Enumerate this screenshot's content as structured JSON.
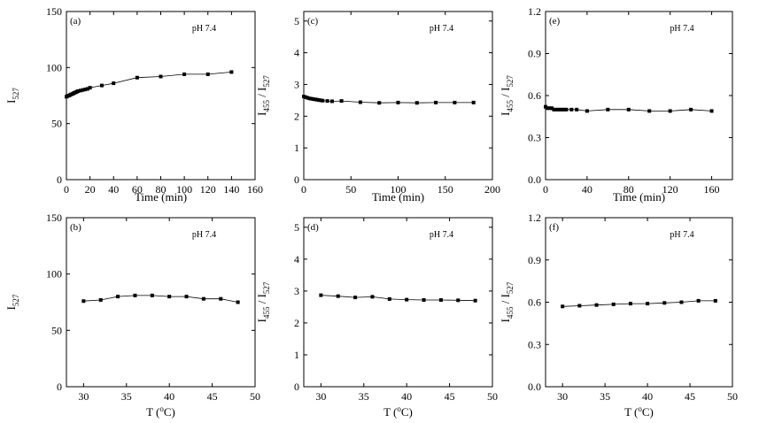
{
  "chart_data": [
    {
      "id": "a",
      "type": "line",
      "panel_label": "(a)",
      "annotation": "pH 7.4",
      "xlabel": "Time (min)",
      "ylabel_main": "I",
      "ylabel_sub": "527",
      "xlim": [
        0,
        160
      ],
      "ylim": [
        0,
        150
      ],
      "xticks": [
        0,
        20,
        40,
        60,
        80,
        100,
        120,
        140,
        160
      ],
      "yticks": [
        0,
        50,
        100,
        150
      ],
      "x": [
        0,
        1,
        2,
        3,
        4,
        5,
        6,
        7,
        8,
        9,
        10,
        12,
        14,
        16,
        18,
        20,
        30,
        40,
        60,
        80,
        100,
        120,
        140
      ],
      "y": [
        74,
        74.5,
        75,
        75.5,
        76,
        76.5,
        77,
        77.5,
        78,
        78.5,
        79,
        79.5,
        80,
        80.5,
        81,
        82,
        84,
        86,
        91,
        92,
        94,
        94,
        96
      ]
    },
    {
      "id": "c",
      "type": "line",
      "panel_label": "(c)",
      "annotation": "pH 7.4",
      "xlabel": "Time (min)",
      "ylabel_main": "I",
      "ylabel_sub": "455",
      "ylabel_mid": " / I",
      "ylabel_sub2": "527",
      "xlim": [
        0,
        200
      ],
      "ylim": [
        0,
        5.3
      ],
      "xticks": [
        0,
        50,
        100,
        150,
        200
      ],
      "yticks": [
        0,
        1,
        2,
        3,
        4,
        5
      ],
      "x": [
        0,
        2,
        4,
        6,
        8,
        10,
        12,
        14,
        16,
        18,
        20,
        25,
        30,
        40,
        60,
        80,
        100,
        120,
        140,
        160,
        180
      ],
      "y": [
        2.62,
        2.6,
        2.58,
        2.56,
        2.55,
        2.54,
        2.53,
        2.52,
        2.51,
        2.5,
        2.49,
        2.48,
        2.47,
        2.48,
        2.44,
        2.42,
        2.43,
        2.42,
        2.43,
        2.43,
        2.43
      ]
    },
    {
      "id": "e",
      "type": "line",
      "panel_label": "(e)",
      "annotation": "pH 7.4",
      "xlabel": "Time (min)",
      "ylabel_main": "I",
      "ylabel_sub": "455",
      "ylabel_mid": " / I",
      "ylabel_sub2": "527",
      "xlim": [
        0,
        180
      ],
      "ylim": [
        0,
        1.2
      ],
      "xticks": [
        0,
        40,
        80,
        120,
        160
      ],
      "yticks": [
        "0.0",
        "0.3",
        "0.6",
        "0.9",
        "1.2"
      ],
      "yticks_num": [
        0,
        0.3,
        0.6,
        0.9,
        1.2
      ],
      "x": [
        0,
        2,
        4,
        6,
        8,
        10,
        12,
        14,
        16,
        18,
        20,
        25,
        30,
        40,
        60,
        80,
        100,
        120,
        140,
        160
      ],
      "y": [
        0.52,
        0.51,
        0.51,
        0.51,
        0.5,
        0.5,
        0.5,
        0.5,
        0.5,
        0.5,
        0.5,
        0.5,
        0.5,
        0.49,
        0.5,
        0.5,
        0.49,
        0.49,
        0.5,
        0.49
      ]
    },
    {
      "id": "b",
      "type": "line",
      "panel_label": "(b)",
      "annotation": "pH 7.4",
      "xlabel_main": "T (",
      "xlabel_sup": "o",
      "xlabel_end": "C)",
      "ylabel_main": "I",
      "ylabel_sub": "527",
      "xlim": [
        28,
        50
      ],
      "ylim": [
        0,
        150
      ],
      "xticks": [
        30,
        35,
        40,
        45,
        50
      ],
      "yticks": [
        0,
        50,
        100,
        150
      ],
      "x": [
        30,
        32,
        34,
        36,
        38,
        40,
        42,
        44,
        46,
        48
      ],
      "y": [
        76,
        77,
        80,
        81,
        81,
        80,
        80,
        78,
        78,
        75
      ]
    },
    {
      "id": "d",
      "type": "line",
      "panel_label": "(d)",
      "annotation": "pH 7.4",
      "xlabel_main": "T (",
      "xlabel_sup": "o",
      "xlabel_end": "C)",
      "ylabel_main": "I",
      "ylabel_sub": "455",
      "ylabel_mid": " / I",
      "ylabel_sub2": "527",
      "xlim": [
        28,
        50
      ],
      "ylim": [
        0,
        5.3
      ],
      "xticks": [
        30,
        35,
        40,
        45,
        50
      ],
      "yticks": [
        0,
        1,
        2,
        3,
        4,
        5
      ],
      "x": [
        30,
        32,
        34,
        36,
        38,
        40,
        42,
        44,
        46,
        48
      ],
      "y": [
        2.87,
        2.84,
        2.8,
        2.82,
        2.75,
        2.73,
        2.72,
        2.72,
        2.71,
        2.7
      ]
    },
    {
      "id": "f",
      "type": "line",
      "panel_label": "(f)",
      "annotation": "pH 7.4",
      "xlabel_main": "T (",
      "xlabel_sup": "o",
      "xlabel_end": "C)",
      "ylabel_main": "I",
      "ylabel_sub": "455",
      "ylabel_mid": " / I",
      "ylabel_sub2": "527",
      "xlim": [
        28,
        50
      ],
      "ylim": [
        0,
        1.2
      ],
      "xticks": [
        30,
        35,
        40,
        45,
        50
      ],
      "yticks": [
        "0.0",
        "0.3",
        "0.6",
        "0.9",
        "1.2"
      ],
      "yticks_num": [
        0,
        0.3,
        0.6,
        0.9,
        1.2
      ],
      "x": [
        30,
        32,
        34,
        36,
        38,
        40,
        42,
        44,
        46,
        48
      ],
      "y": [
        0.57,
        0.575,
        0.58,
        0.585,
        0.59,
        0.59,
        0.595,
        0.6,
        0.61,
        0.61
      ]
    }
  ]
}
